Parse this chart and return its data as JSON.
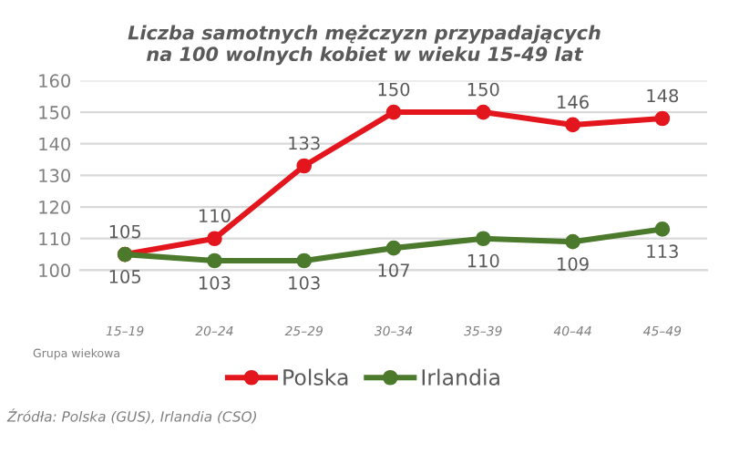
{
  "chart_data": {
    "type": "line",
    "title": "Liczba samotnych mężczyzn przypadających\nna 100 wolnych kobiet w wieku 15-49 lat",
    "xlabel": "Grupa wiekowa",
    "categories": [
      "15–19",
      "20–24",
      "25–29",
      "30–34",
      "35–39",
      "40–44",
      "45–49"
    ],
    "series": [
      {
        "name": "Polska",
        "color": "#e3161e",
        "values": [
          105,
          110,
          133,
          150,
          150,
          146,
          148
        ]
      },
      {
        "name": "Irlandia",
        "color": "#4c7a2c",
        "values": [
          105,
          103,
          103,
          107,
          110,
          109,
          113
        ]
      }
    ],
    "ylim": [
      100,
      160
    ],
    "yticks": [
      100,
      110,
      120,
      130,
      140,
      150,
      160
    ],
    "grid": "y",
    "legend": "bottom",
    "marker": "circle",
    "line_style": "solid",
    "data_labels": true,
    "annotations": [
      "Źródła: Polska (GUS), Irlandia (CSO)"
    ]
  }
}
